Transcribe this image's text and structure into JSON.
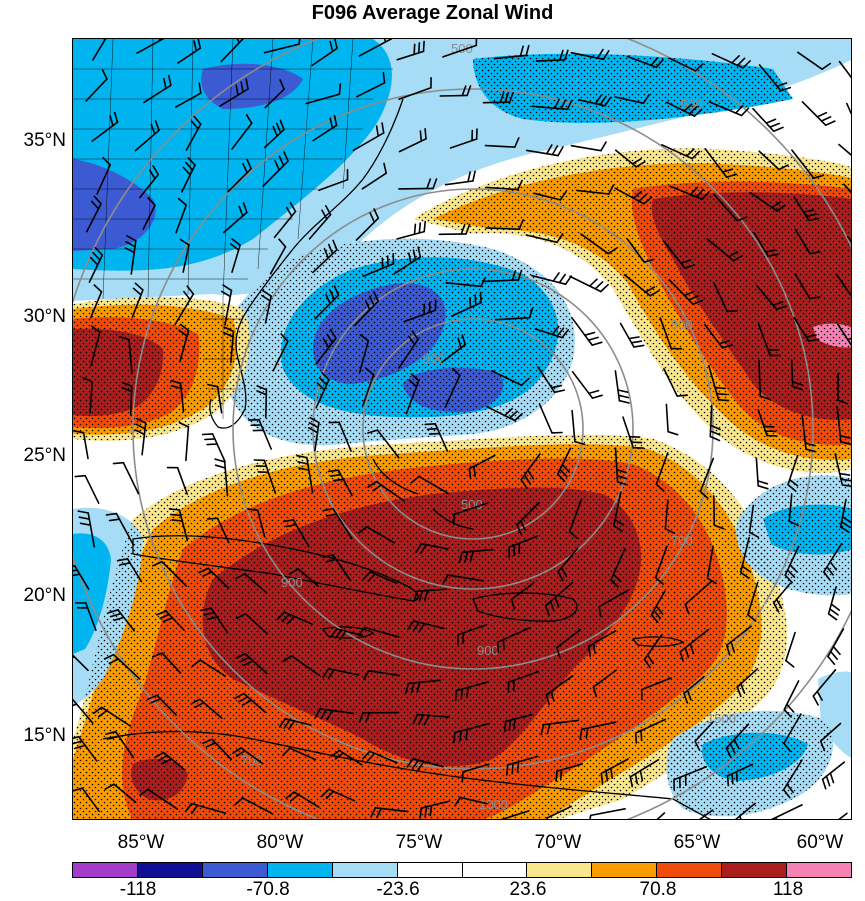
{
  "title": "F096 Average Zonal Wind",
  "lat_labels": [
    "35°N",
    "30°N",
    "25°N",
    "20°N",
    "15°N"
  ],
  "lon_labels": [
    "85°W",
    "80°W",
    "75°W",
    "70°W",
    "65°W",
    "60°W"
  ],
  "colorbar": {
    "colors": [
      "#a33cc8",
      "#101096",
      "#3c5ad2",
      "#00b4f0",
      "#a6dcf5",
      "#ffffff",
      "#ffffff",
      "#fae68c",
      "#fa9b00",
      "#f04b0a",
      "#aa1e1e",
      "#f582b4"
    ],
    "labels": [
      "-118",
      "-70.8",
      "-23.6",
      "23.6",
      "70.8",
      "118"
    ]
  },
  "contour_labels": [
    "500",
    "500",
    "500",
    "900",
    "900",
    "900",
    "900",
    "700",
    "700",
    "1000",
    "1500"
  ],
  "colors": {
    "dark_red": "#aa1e1e",
    "red_orange": "#f04b0a",
    "orange": "#fa9b00",
    "yellow": "#fae68c",
    "light_blue": "#a6dcf5",
    "blue": "#00b4f0",
    "medium_blue": "#3c5ad2",
    "dark_blue": "#101096",
    "pink": "#f582b4"
  }
}
